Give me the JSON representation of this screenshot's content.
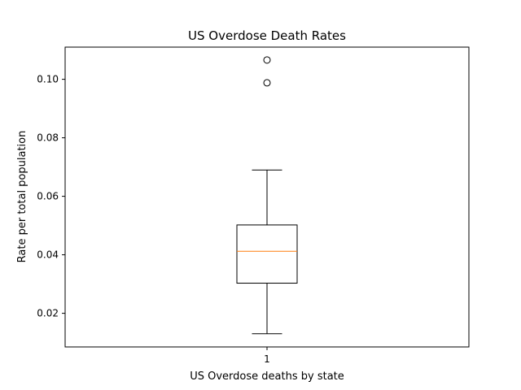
{
  "chart_data": {
    "type": "box",
    "title": "US Overdose Death Rates",
    "xlabel": "US Overdose deaths by state",
    "ylabel": "Rate per total population",
    "categories": [
      "1"
    ],
    "ylim": [
      0.0085,
      0.111
    ],
    "yticks": [
      0.02,
      0.04,
      0.06,
      0.08,
      0.1
    ],
    "ytick_labels": [
      "0.02",
      "0.04",
      "0.06",
      "0.08",
      "0.10"
    ],
    "grid": false,
    "series": [
      {
        "whisker_low": 0.013,
        "q1": 0.0303,
        "median": 0.0412,
        "q3": 0.0502,
        "whisker_high": 0.069,
        "outliers": [
          0.0988,
          0.1066
        ]
      }
    ],
    "colors": {
      "box": "#000000",
      "median": "#ff7f0e",
      "outlier": "#000000"
    }
  }
}
